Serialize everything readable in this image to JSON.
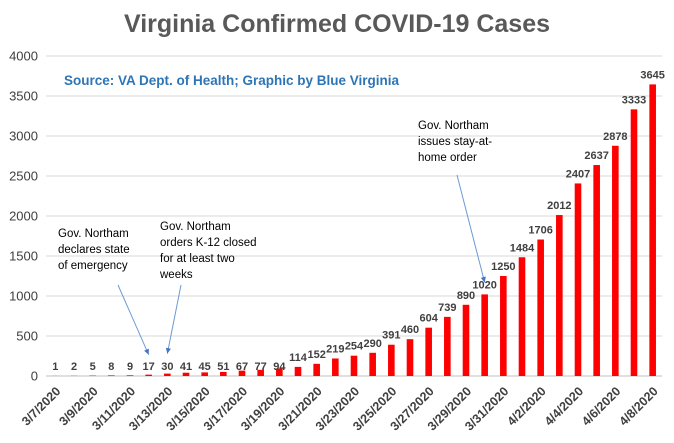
{
  "chart_data": {
    "type": "bar",
    "title": "Virginia Confirmed COVID-19 Cases",
    "subtitle": "Source: VA Dept. of Health; Graphic by Blue Virginia",
    "xlabel": "",
    "ylabel": "",
    "ylim": [
      0,
      4000
    ],
    "yticks": [
      "0",
      "500",
      "1000",
      "1500",
      "2000",
      "2500",
      "3000",
      "3500",
      "4000"
    ],
    "grid": true,
    "bar_color": "#ff0000",
    "categories": [
      "3/7/2020",
      "3/8/2020",
      "3/9/2020",
      "3/10/2020",
      "3/11/2020",
      "3/12/2020",
      "3/13/2020",
      "3/14/2020",
      "3/15/2020",
      "3/16/2020",
      "3/17/2020",
      "3/18/2020",
      "3/19/2020",
      "3/20/2020",
      "3/21/2020",
      "3/22/2020",
      "3/23/2020",
      "3/24/2020",
      "3/25/2020",
      "3/26/2020",
      "3/27/2020",
      "3/28/2020",
      "3/29/2020",
      "3/30/2020",
      "3/31/2020",
      "4/1/2020",
      "4/2/2020",
      "4/3/2020",
      "4/4/2020",
      "4/5/2020",
      "4/6/2020",
      "4/7/2020",
      "4/8/2020"
    ],
    "tick_labels": [
      "3/7/2020",
      "3/9/2020",
      "3/11/2020",
      "3/13/2020",
      "3/15/2020",
      "3/17/2020",
      "3/19/2020",
      "3/21/2020",
      "3/23/2020",
      "3/25/2020",
      "3/27/2020",
      "3/29/2020",
      "3/31/2020",
      "4/2/2020",
      "4/4/2020",
      "4/6/2020",
      "4/8/2020"
    ],
    "values": [
      1,
      2,
      5,
      8,
      9,
      17,
      30,
      41,
      45,
      51,
      67,
      77,
      94,
      114,
      152,
      219,
      254,
      290,
      391,
      460,
      604,
      739,
      890,
      1020,
      1250,
      1484,
      1706,
      2012,
      2407,
      2637,
      2878,
      3333,
      3645
    ],
    "annotations": [
      {
        "lines": [
          "Gov. Northam",
          "declares state",
          "of emergency"
        ],
        "target": "3/12/2020"
      },
      {
        "lines": [
          "Gov. Northam",
          "orders K-12 closed",
          "for at least two",
          "weeks"
        ],
        "target": "3/13/2020"
      },
      {
        "lines": [
          "Gov. Northam",
          "issues stay-at-",
          "home order"
        ],
        "target": "3/30/2020"
      }
    ]
  }
}
